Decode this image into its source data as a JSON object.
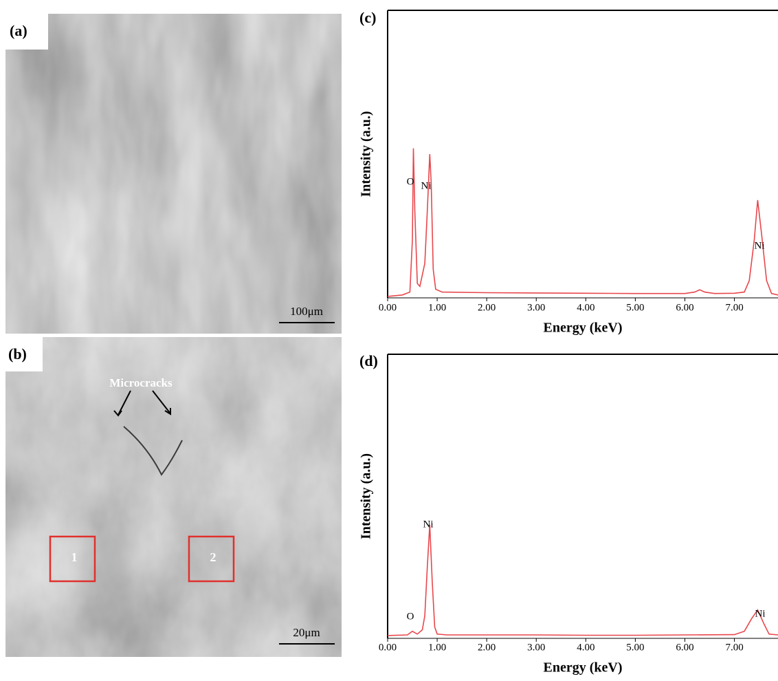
{
  "images": [
    {
      "label": "(a)",
      "scale_bar": "100μm"
    },
    {
      "label": "(b)",
      "scale_bar": "20μm",
      "annotation": "Microcracks",
      "regions": [
        "1",
        "2"
      ]
    }
  ],
  "chart_data": [
    {
      "type": "line",
      "panel_label": "(c)",
      "x_label": "Energy (keV)",
      "y_label": "Intensity (a.u.)",
      "xlim": [
        0,
        7.88
      ],
      "ylim": [
        0,
        100
      ],
      "xticks": [
        {
          "value": 0,
          "label": "0.00"
        },
        {
          "value": 1,
          "label": "1.00"
        },
        {
          "value": 2,
          "label": "2.00"
        },
        {
          "value": 3,
          "label": "3.00"
        },
        {
          "value": 4,
          "label": "4.00"
        },
        {
          "value": 5,
          "label": "5.00"
        },
        {
          "value": 6,
          "label": "6.00"
        },
        {
          "value": 7,
          "label": "7.00"
        }
      ],
      "series": [
        {
          "color": "#e8474c",
          "x": [
            0,
            0.3,
            0.45,
            0.5,
            0.52,
            0.55,
            0.6,
            0.65,
            0.7,
            0.75,
            0.8,
            0.85,
            0.88,
            0.92,
            0.97,
            1.1,
            2,
            3,
            4,
            5,
            6,
            6.2,
            6.3,
            6.4,
            6.6,
            7.0,
            7.2,
            7.3,
            7.4,
            7.47,
            7.55,
            7.65,
            7.75,
            7.88
          ],
          "values": [
            0.5,
            1,
            2,
            20,
            52,
            30,
            5,
            4,
            8,
            12,
            30,
            50,
            40,
            10,
            3,
            2,
            1.8,
            1.7,
            1.6,
            1.5,
            1.5,
            2,
            2.8,
            2,
            1.5,
            1.6,
            2,
            6,
            20,
            34,
            22,
            6,
            1.5,
            1
          ]
        }
      ],
      "annotations": [
        "O",
        "Ni",
        "Ni"
      ]
    },
    {
      "type": "line",
      "panel_label": "(d)",
      "x_label": "Energy (keV)",
      "y_label": "Intensity (a.u.)",
      "xlim": [
        0,
        7.88
      ],
      "ylim": [
        0,
        100
      ],
      "xticks": [
        {
          "value": 0,
          "label": "0.00"
        },
        {
          "value": 1,
          "label": "1.00"
        },
        {
          "value": 2,
          "label": "2.00"
        },
        {
          "value": 3,
          "label": "3.00"
        },
        {
          "value": 4,
          "label": "4.00"
        },
        {
          "value": 5,
          "label": "5.00"
        },
        {
          "value": 6,
          "label": "6.00"
        },
        {
          "value": 7,
          "label": "7.00"
        }
      ],
      "series": [
        {
          "color": "#e8474c",
          "x": [
            0,
            0.4,
            0.5,
            0.6,
            0.7,
            0.75,
            0.8,
            0.85,
            0.9,
            0.95,
            1.0,
            1.2,
            2,
            3,
            4,
            5,
            6,
            7,
            7.2,
            7.35,
            7.47,
            7.6,
            7.7,
            7.88
          ],
          "values": [
            1,
            1.2,
            2.5,
            1.5,
            3,
            8,
            25,
            40,
            20,
            4,
            1.5,
            1.2,
            1.2,
            1.2,
            1.1,
            1.1,
            1.2,
            1.3,
            2.5,
            7,
            10,
            5,
            1.5,
            1.2
          ]
        }
      ],
      "annotations": [
        "O",
        "Ni",
        "Ni"
      ]
    }
  ]
}
